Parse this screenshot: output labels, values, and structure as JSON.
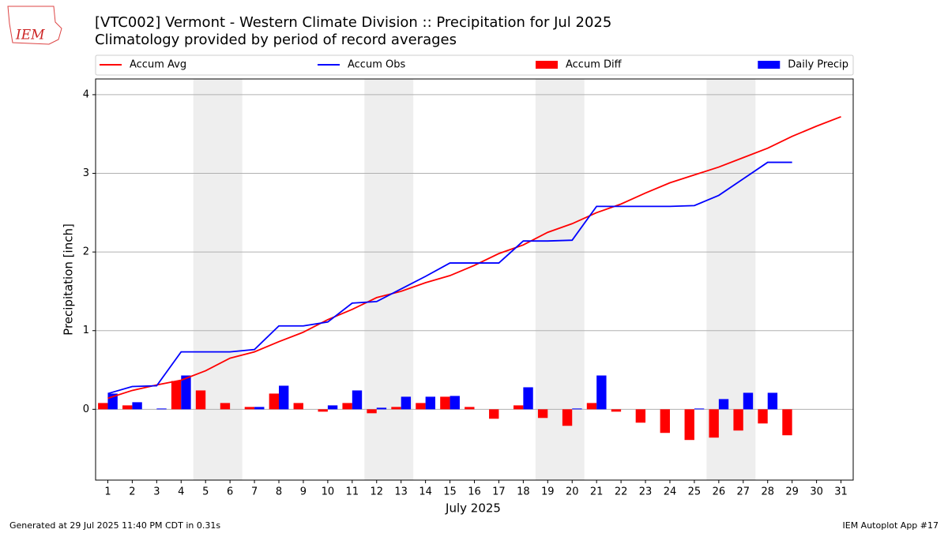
{
  "logo": "IEM",
  "footer_left": "Generated at 29 Jul 2025 11:40 PM CDT in 0.31s",
  "footer_right": "IEM Autoplot App #17",
  "chart_data": {
    "type": "combo",
    "title": "[VTC002] Vermont - Western Climate Division :: Precipitation for Jul 2025",
    "subtitle": "Climatology provided by period of record averages",
    "x_label": "July 2025",
    "y_label": "Precipitation [inch]",
    "x": [
      1,
      2,
      3,
      4,
      5,
      6,
      7,
      8,
      9,
      10,
      11,
      12,
      13,
      14,
      15,
      16,
      17,
      18,
      19,
      20,
      21,
      22,
      23,
      24,
      25,
      26,
      27,
      28,
      29,
      30,
      31
    ],
    "xlim": [
      0.5,
      31.5
    ],
    "xticks": [
      1,
      2,
      3,
      4,
      5,
      6,
      7,
      8,
      9,
      10,
      11,
      12,
      13,
      14,
      15,
      16,
      17,
      18,
      19,
      20,
      21,
      22,
      23,
      24,
      25,
      26,
      27,
      28,
      29,
      30,
      31
    ],
    "ylim": [
      -0.9,
      4.2
    ],
    "yticks": [
      0,
      1,
      2,
      3,
      4
    ],
    "grid": true,
    "shaded_ranges": [
      [
        4.5,
        6.5
      ],
      [
        11.5,
        13.5
      ],
      [
        18.5,
        20.5
      ],
      [
        25.5,
        27.5
      ]
    ],
    "series": [
      {
        "name": "Accum Avg",
        "type": "line",
        "color": "#ff0000",
        "values": [
          0.14,
          0.24,
          0.31,
          0.37,
          0.49,
          0.65,
          0.73,
          0.86,
          0.98,
          1.14,
          1.27,
          1.42,
          1.5,
          1.61,
          1.7,
          1.83,
          1.98,
          2.09,
          2.25,
          2.36,
          2.5,
          2.61,
          2.75,
          2.88,
          2.98,
          3.08,
          3.2,
          3.32,
          3.47,
          3.6,
          3.72
        ]
      },
      {
        "name": "Accum Obs",
        "type": "line",
        "color": "#0000ff",
        "values": [
          0.2,
          0.29,
          0.3,
          0.73,
          0.73,
          0.73,
          0.76,
          1.06,
          1.06,
          1.11,
          1.35,
          1.37,
          1.53,
          1.69,
          1.86,
          1.86,
          1.86,
          2.14,
          2.14,
          2.15,
          2.58,
          2.58,
          2.58,
          2.58,
          2.59,
          2.72,
          2.93,
          3.14,
          3.14,
          null,
          null
        ]
      },
      {
        "name": "Accum Diff",
        "type": "bar",
        "side": "left",
        "color": "#ff0000",
        "values": [
          0.08,
          0.05,
          0,
          0.36,
          0.24,
          0.08,
          0.03,
          0.2,
          0.08,
          -0.03,
          0.08,
          -0.05,
          0.03,
          0.08,
          0.16,
          0.03,
          -0.12,
          0.05,
          -0.11,
          -0.21,
          0.08,
          -0.03,
          -0.17,
          -0.3,
          -0.39,
          -0.36,
          -0.27,
          -0.18,
          -0.33,
          null,
          null
        ]
      },
      {
        "name": "Daily Precip",
        "type": "bar",
        "side": "right",
        "color": "#0000ff",
        "values": [
          0.2,
          0.09,
          0.01,
          0.43,
          0,
          0,
          0.03,
          0.3,
          0,
          0.05,
          0.24,
          0.02,
          0.16,
          0.16,
          0.17,
          0,
          0,
          0.28,
          0,
          0.01,
          0.43,
          0,
          0,
          0,
          0.01,
          0.13,
          0.21,
          0.21,
          0,
          null,
          null
        ]
      }
    ]
  }
}
